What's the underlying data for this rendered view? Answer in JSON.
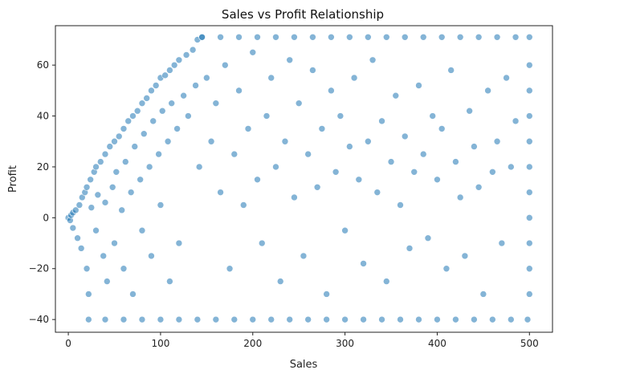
{
  "chart_data": {
    "type": "scatter",
    "title": "Sales vs Profit Relationship",
    "xlabel": "Sales",
    "ylabel": "Profit",
    "xlim": [
      -14,
      525
    ],
    "ylim": [
      -45,
      75.5
    ],
    "xticks": [
      0,
      100,
      200,
      300,
      400,
      500
    ],
    "yticks": [
      -40,
      -20,
      0,
      20,
      40,
      60
    ],
    "xtick_labels": [
      "0",
      "100",
      "200",
      "300",
      "400",
      "500"
    ],
    "ytick_labels": [
      "−40",
      "−20",
      "0",
      "20",
      "40",
      "60"
    ],
    "grid": false,
    "legend": "none",
    "marker_color": "#1f77b4",
    "marker_edge_color": "#ffffff",
    "marker_alpha": 0.55,
    "series": [
      {
        "points": [
          [
            0,
            0
          ],
          [
            2,
            -1
          ],
          [
            3,
            1
          ],
          [
            5,
            2
          ],
          [
            5,
            -4
          ],
          [
            8,
            3
          ],
          [
            10,
            -8
          ],
          [
            12,
            5
          ],
          [
            14,
            -12
          ],
          [
            15,
            8
          ],
          [
            18,
            10
          ],
          [
            20,
            -20
          ],
          [
            20,
            12
          ],
          [
            22,
            -30
          ],
          [
            24,
            15
          ],
          [
            25,
            4
          ],
          [
            28,
            18
          ],
          [
            30,
            -5
          ],
          [
            30,
            20
          ],
          [
            32,
            9
          ],
          [
            35,
            22
          ],
          [
            38,
            -15
          ],
          [
            40,
            25
          ],
          [
            40,
            6
          ],
          [
            42,
            -25
          ],
          [
            45,
            28
          ],
          [
            48,
            12
          ],
          [
            50,
            30
          ],
          [
            50,
            -10
          ],
          [
            52,
            18
          ],
          [
            55,
            32
          ],
          [
            58,
            3
          ],
          [
            60,
            35
          ],
          [
            60,
            -20
          ],
          [
            62,
            22
          ],
          [
            65,
            38
          ],
          [
            68,
            10
          ],
          [
            70,
            40
          ],
          [
            70,
            -30
          ],
          [
            72,
            28
          ],
          [
            75,
            42
          ],
          [
            78,
            15
          ],
          [
            80,
            45
          ],
          [
            80,
            -5
          ],
          [
            82,
            33
          ],
          [
            85,
            47
          ],
          [
            88,
            20
          ],
          [
            90,
            50
          ],
          [
            90,
            -15
          ],
          [
            92,
            38
          ],
          [
            95,
            52
          ],
          [
            98,
            25
          ],
          [
            100,
            55
          ],
          [
            100,
            5
          ],
          [
            102,
            42
          ],
          [
            105,
            56
          ],
          [
            108,
            30
          ],
          [
            110,
            58
          ],
          [
            110,
            -25
          ],
          [
            112,
            45
          ],
          [
            115,
            60
          ],
          [
            118,
            35
          ],
          [
            120,
            62
          ],
          [
            120,
            -10
          ],
          [
            125,
            48
          ],
          [
            128,
            64
          ],
          [
            130,
            40
          ],
          [
            135,
            66
          ],
          [
            138,
            52
          ],
          [
            140,
            70
          ],
          [
            142,
            20
          ],
          [
            145,
            71
          ],
          [
            150,
            55
          ],
          [
            155,
            30
          ],
          [
            160,
            45
          ],
          [
            165,
            10
          ],
          [
            170,
            60
          ],
          [
            175,
            -20
          ],
          [
            180,
            25
          ],
          [
            185,
            50
          ],
          [
            190,
            5
          ],
          [
            195,
            35
          ],
          [
            200,
            65
          ],
          [
            205,
            15
          ],
          [
            210,
            -10
          ],
          [
            215,
            40
          ],
          [
            220,
            55
          ],
          [
            225,
            20
          ],
          [
            230,
            -25
          ],
          [
            235,
            30
          ],
          [
            240,
            62
          ],
          [
            245,
            8
          ],
          [
            250,
            45
          ],
          [
            255,
            -15
          ],
          [
            260,
            25
          ],
          [
            265,
            58
          ],
          [
            270,
            12
          ],
          [
            275,
            35
          ],
          [
            280,
            -30
          ],
          [
            285,
            50
          ],
          [
            290,
            18
          ],
          [
            295,
            40
          ],
          [
            300,
            -5
          ],
          [
            305,
            28
          ],
          [
            310,
            55
          ],
          [
            315,
            15
          ],
          [
            320,
            -18
          ],
          [
            325,
            30
          ],
          [
            330,
            62
          ],
          [
            335,
            10
          ],
          [
            340,
            38
          ],
          [
            345,
            -25
          ],
          [
            350,
            22
          ],
          [
            355,
            48
          ],
          [
            360,
            5
          ],
          [
            365,
            32
          ],
          [
            370,
            -12
          ],
          [
            375,
            18
          ],
          [
            380,
            52
          ],
          [
            385,
            25
          ],
          [
            390,
            -8
          ],
          [
            395,
            40
          ],
          [
            400,
            15
          ],
          [
            405,
            35
          ],
          [
            410,
            -20
          ],
          [
            415,
            58
          ],
          [
            420,
            22
          ],
          [
            425,
            8
          ],
          [
            430,
            -15
          ],
          [
            435,
            42
          ],
          [
            440,
            28
          ],
          [
            445,
            12
          ],
          [
            450,
            -30
          ],
          [
            455,
            50
          ],
          [
            460,
            18
          ],
          [
            465,
            30
          ],
          [
            470,
            -10
          ],
          [
            475,
            55
          ],
          [
            480,
            20
          ],
          [
            485,
            38
          ],
          [
            22,
            -40
          ],
          [
            40,
            -40
          ],
          [
            60,
            -40
          ],
          [
            80,
            -40
          ],
          [
            100,
            -40
          ],
          [
            120,
            -40
          ],
          [
            140,
            -40
          ],
          [
            160,
            -40
          ],
          [
            180,
            -40
          ],
          [
            200,
            -40
          ],
          [
            220,
            -40
          ],
          [
            240,
            -40
          ],
          [
            260,
            -40
          ],
          [
            280,
            -40
          ],
          [
            300,
            -40
          ],
          [
            320,
            -40
          ],
          [
            340,
            -40
          ],
          [
            360,
            -40
          ],
          [
            380,
            -40
          ],
          [
            400,
            -40
          ],
          [
            420,
            -40
          ],
          [
            440,
            -40
          ],
          [
            460,
            -40
          ],
          [
            480,
            -40
          ],
          [
            498,
            -40
          ],
          [
            145,
            71
          ],
          [
            165,
            71
          ],
          [
            185,
            71
          ],
          [
            205,
            71
          ],
          [
            225,
            71
          ],
          [
            245,
            71
          ],
          [
            265,
            71
          ],
          [
            285,
            71
          ],
          [
            305,
            71
          ],
          [
            325,
            71
          ],
          [
            345,
            71
          ],
          [
            365,
            71
          ],
          [
            385,
            71
          ],
          [
            405,
            71
          ],
          [
            425,
            71
          ],
          [
            445,
            71
          ],
          [
            465,
            71
          ],
          [
            485,
            71
          ],
          [
            500,
            71
          ],
          [
            500,
            60
          ],
          [
            500,
            50
          ],
          [
            500,
            40
          ],
          [
            500,
            30
          ],
          [
            500,
            20
          ],
          [
            500,
            10
          ],
          [
            500,
            0
          ],
          [
            500,
            -10
          ],
          [
            500,
            -20
          ],
          [
            500,
            -30
          ]
        ]
      }
    ]
  }
}
